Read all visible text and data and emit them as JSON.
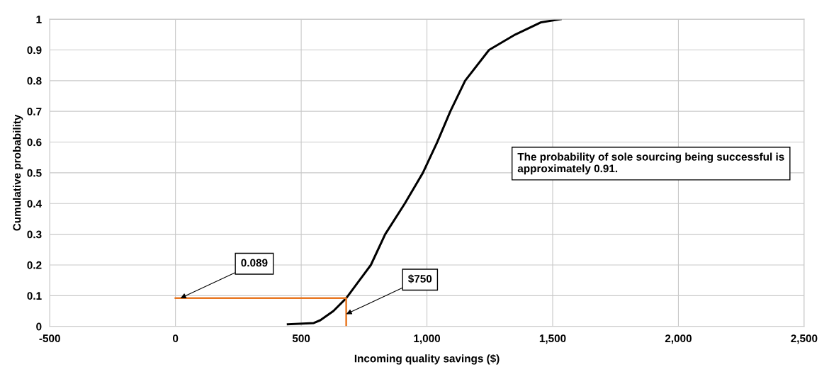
{
  "chart_data": {
    "type": "line",
    "xlabel": "Incoming quality savings ($)",
    "ylabel": "Cumulative probability",
    "series": [
      {
        "color": "#000000",
        "x": [
          447,
          550,
          576,
          628,
          679,
          777,
          834,
          912,
          984,
          1041,
          1093,
          1152,
          1247,
          1351,
          1454,
          1532
        ],
        "values": [
          0.007,
          0.011,
          0.02,
          0.05,
          0.092,
          0.2,
          0.3,
          0.4,
          0.5,
          0.6,
          0.7,
          0.8,
          0.9,
          0.95,
          0.99,
          1.0
        ]
      },
      {
        "color": "#e87722",
        "x": [
          0,
          679,
          679
        ],
        "values": [
          0.092,
          0.092,
          0
        ]
      }
    ],
    "annotations": [
      {
        "text": "0.089",
        "x": 20,
        "y": 0.092
      },
      {
        "text": "$750",
        "x": 679,
        "y": 0.04
      },
      "The probability of sole sourcing being successful is approximately 0.91."
    ],
    "xlim": [
      -500,
      2500
    ],
    "xticks": [
      {
        "value": -500,
        "label": "-500"
      },
      0,
      500,
      {
        "value": 1000,
        "label": "1,000"
      },
      {
        "value": 1500,
        "label": "1,500"
      },
      {
        "value": 2000,
        "label": "2,000"
      },
      {
        "value": 2500,
        "label": "2,500"
      }
    ],
    "ylim": [
      0,
      1
    ],
    "yticks": [
      0,
      0.1,
      0.2,
      0.3,
      0.4,
      0.5,
      0.6,
      0.7,
      0.8,
      0.9,
      1
    ],
    "grid": true,
    "marker": "none",
    "line_style": "solid"
  }
}
